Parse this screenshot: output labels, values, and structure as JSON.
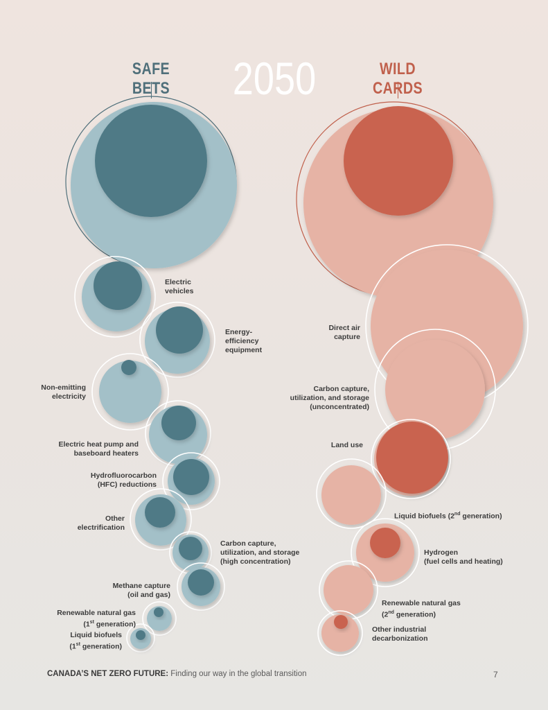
{
  "header": {
    "left_title": "SAFE BETS",
    "center_year": "2050",
    "right_title": "WILD CARDS"
  },
  "colors": {
    "safe_dark": "#4f7a86",
    "safe_light": "#a3c0c8",
    "wild_dark": "#c9644f",
    "wild_light": "#e6b3a5",
    "ring": "#ffffff"
  },
  "safe_bets": [
    {
      "id": "electric-vehicles",
      "line1": "Electric",
      "line2": "vehicles",
      "line3": ""
    },
    {
      "id": "energy-efficiency",
      "line1": "Energy-",
      "line2": "efficiency",
      "line3": "equipment"
    },
    {
      "id": "non-emitting-electricity",
      "line1": "Non-emitting",
      "line2": "electricity",
      "line3": ""
    },
    {
      "id": "heat-pump",
      "line1": "Electric heat pump and",
      "line2": "baseboard heaters",
      "line3": ""
    },
    {
      "id": "hfc",
      "line1": "Hydrofluorocarbon",
      "line2": "(HFC) reductions",
      "line3": ""
    },
    {
      "id": "other-electrification",
      "line1": "Other",
      "line2": "electrification",
      "line3": ""
    },
    {
      "id": "ccus-high",
      "line1": "Carbon capture,",
      "line2": "utilization, and storage",
      "line3": "(high concentration)"
    },
    {
      "id": "methane",
      "line1": "Methane capture",
      "line2": "(oil and gas)",
      "line3": ""
    },
    {
      "id": "rng-1",
      "line1": "Renewable natural gas",
      "line2_pre": "(1",
      "line2_sup": "st",
      "line2_post": " generation)"
    },
    {
      "id": "biofuels-1",
      "line1": "Liquid biofuels",
      "line2_pre": "(1",
      "line2_sup": "st",
      "line2_post": " generation)"
    }
  ],
  "wild_cards": [
    {
      "id": "dac",
      "line1": "Direct air",
      "line2": "capture",
      "line3": ""
    },
    {
      "id": "ccus-unconc",
      "line1": "Carbon capture,",
      "line2": "utilization, and storage",
      "line3": "(unconcentrated)"
    },
    {
      "id": "land-use",
      "line1": "Land use",
      "line2": "",
      "line3": ""
    },
    {
      "id": "biofuels-2",
      "line1_pre": "Liquid biofuels (2",
      "line1_sup": "nd",
      "line1_post": " generation)"
    },
    {
      "id": "hydrogen",
      "line1": "Hydrogen",
      "line2": "(fuel cells and heating)",
      "line3": ""
    },
    {
      "id": "rng-2",
      "line1": "Renewable natural gas",
      "line2_pre": "(2",
      "line2_sup": "nd",
      "line2_post": " generation)"
    },
    {
      "id": "other-industrial",
      "line1": "Other industrial",
      "line2": "decarbonization",
      "line3": ""
    }
  ],
  "footer": {
    "title": "CANADA’S NET ZERO FUTURE:",
    "subtitle": " Finding our way in the global transition",
    "page_number": "7"
  }
}
